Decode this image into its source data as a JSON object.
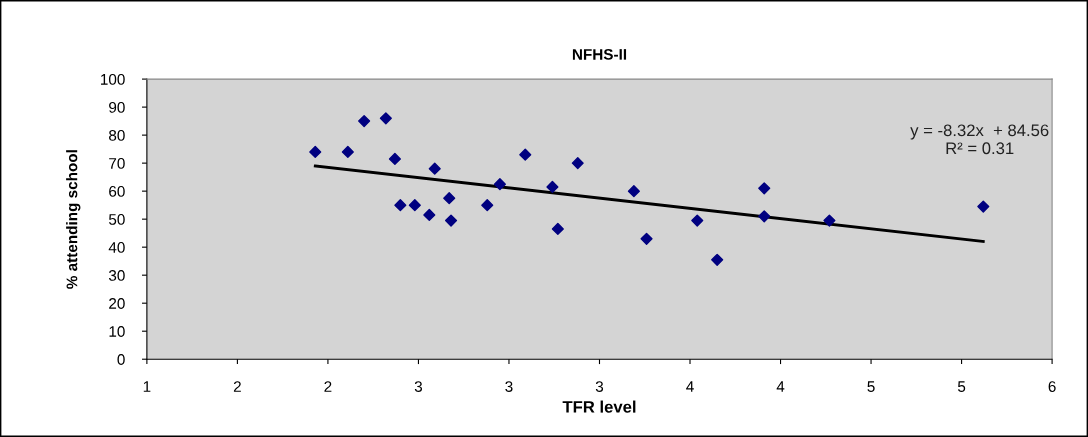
{
  "chart_data": {
    "type": "scatter",
    "title": "NFHS-II",
    "xlabel": "TFR level",
    "ylabel": "% attending school",
    "series": [
      {
        "color": "#000080",
        "marker": "diamond",
        "x": [
          1.93,
          2.11,
          2.2,
          2.32,
          2.37,
          2.4,
          2.48,
          2.56,
          2.59,
          2.67,
          2.68,
          2.88,
          2.95,
          3.09,
          3.24,
          3.27,
          3.38,
          3.69,
          3.76,
          4.04,
          4.15,
          4.41,
          4.41,
          4.77,
          5.62
        ],
        "values": [
          74,
          74,
          85,
          86,
          71.5,
          55,
          55,
          51.5,
          68,
          57.5,
          49.5,
          55,
          62.5,
          73,
          61.5,
          46.5,
          70,
          60,
          43,
          49.5,
          35.5,
          61,
          51,
          49.5,
          54.5
        ]
      },
      {
        "type": "line",
        "color": "#000000",
        "marker": "none",
        "x": [
          1.93,
          5.62
        ],
        "values": [
          69,
          42
        ]
      }
    ],
    "annotations": [
      "y = -8.32x  + 84.56\nR² = 0.31"
    ],
    "xlim": [
      1,
      6
    ],
    "xticks": [
      1,
      {
        "value": 1.5,
        "label": "2"
      },
      2,
      {
        "value": 2.5,
        "label": "3"
      },
      3,
      {
        "value": 3.5,
        "label": "3"
      },
      {
        "value": 4,
        "label": "4"
      },
      {
        "value": 4.5,
        "label": "4"
      },
      {
        "value": 5,
        "label": "5"
      },
      {
        "value": 5.5,
        "label": "5"
      },
      6
    ],
    "ylim": [
      0,
      100
    ],
    "yticks": [
      0,
      10,
      20,
      30,
      40,
      50,
      60,
      70,
      80,
      90,
      100
    ],
    "grid": false,
    "legend": false
  }
}
